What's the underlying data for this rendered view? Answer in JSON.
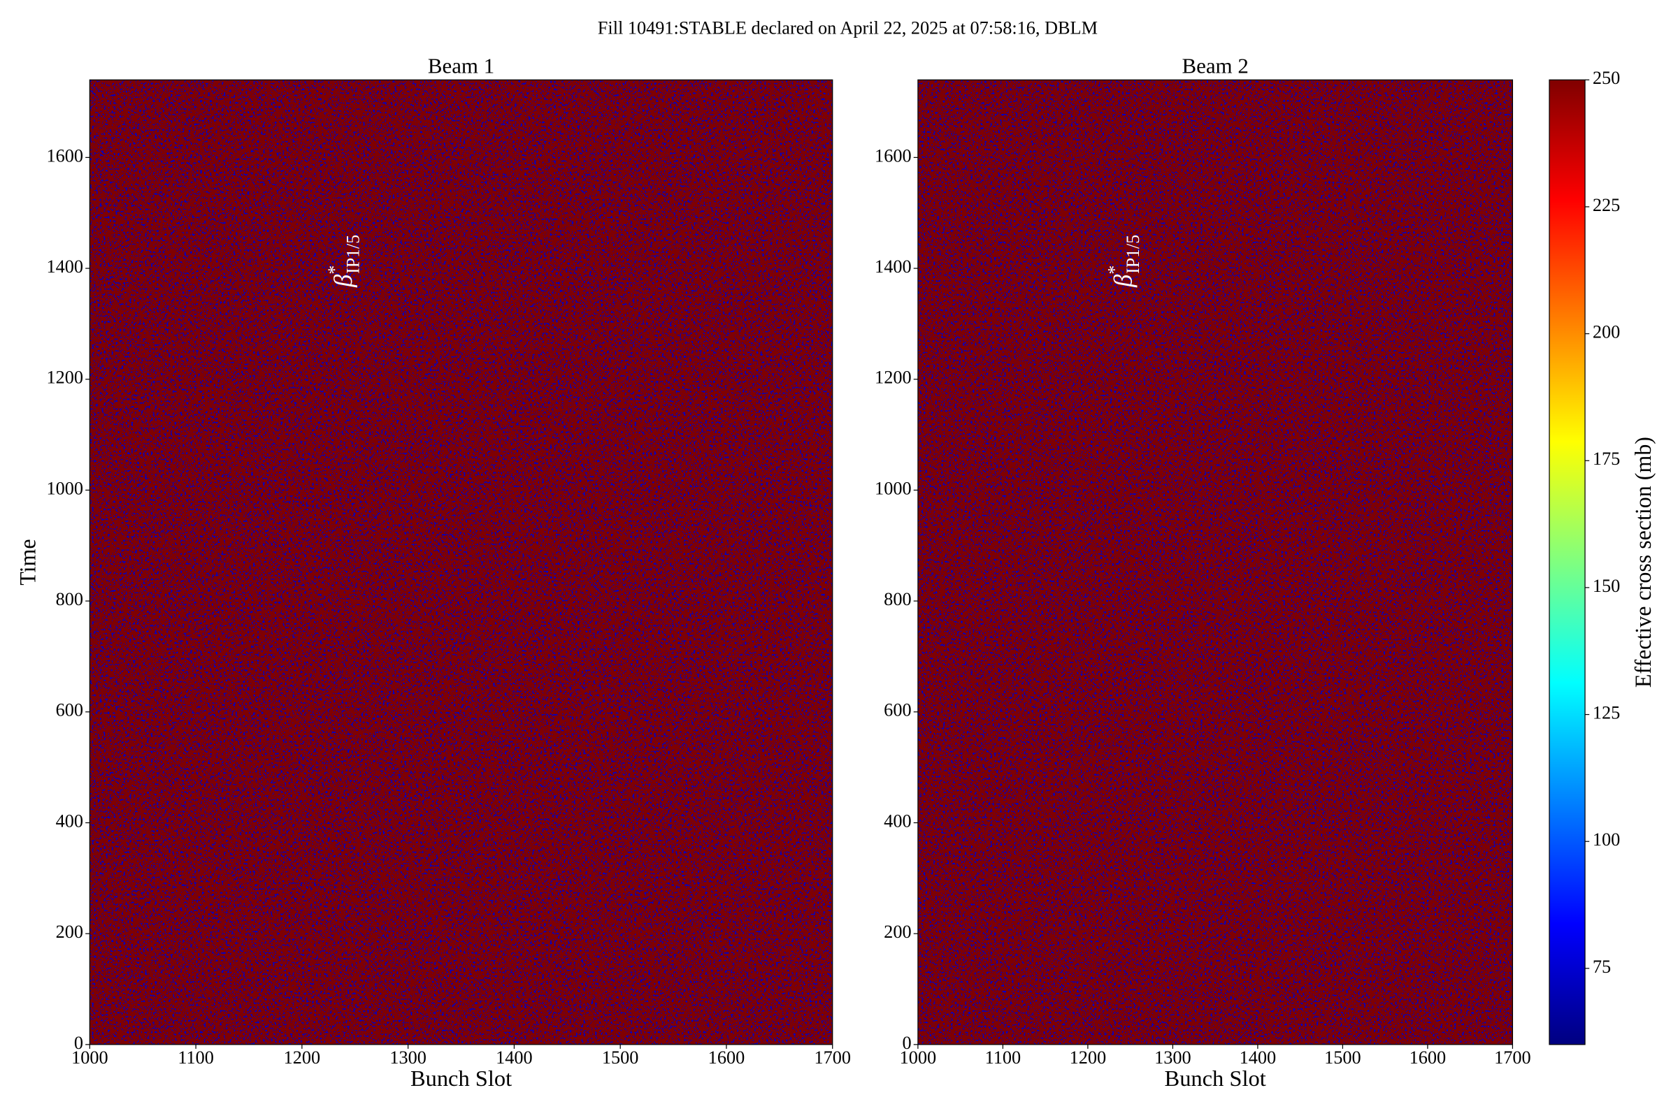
{
  "title": "Fill 10491:STABLE declared on April 22, 2025 at 07:58:16, DBLM",
  "chart_data": [
    {
      "type": "heatmap",
      "title": "Beam 1",
      "xlabel": "Bunch Slot",
      "ylabel": "Time",
      "xlim": [
        1000,
        1700
      ],
      "xticks": [
        1000,
        1100,
        1200,
        1300,
        1400,
        1500,
        1600,
        1700
      ],
      "ylim": [
        0,
        1740
      ],
      "yticks": [
        0,
        200,
        400,
        600,
        800,
        1000,
        1200,
        1400,
        1600
      ],
      "annotation": {
        "symbol": "β",
        "sup": "*",
        "sub": "IP1/5"
      }
    },
    {
      "type": "heatmap",
      "title": "Beam 2",
      "xlabel": "Bunch Slot",
      "xlim": [
        1000,
        1700
      ],
      "xticks": [
        1000,
        1100,
        1200,
        1300,
        1400,
        1500,
        1600,
        1700
      ],
      "ylim": [
        0,
        1740
      ],
      "yticks": [
        0,
        200,
        400,
        600,
        800,
        1000,
        1200,
        1400,
        1600
      ],
      "annotation": {
        "symbol": "β",
        "sup": "*",
        "sub": "IP1/5"
      }
    },
    {
      "type": "colorbar",
      "label": "Effective cross section (mb)",
      "cmap": "jet",
      "lim": [
        60,
        250
      ],
      "ticks": [
        75,
        100,
        125,
        150,
        175,
        200,
        225,
        250
      ]
    }
  ]
}
